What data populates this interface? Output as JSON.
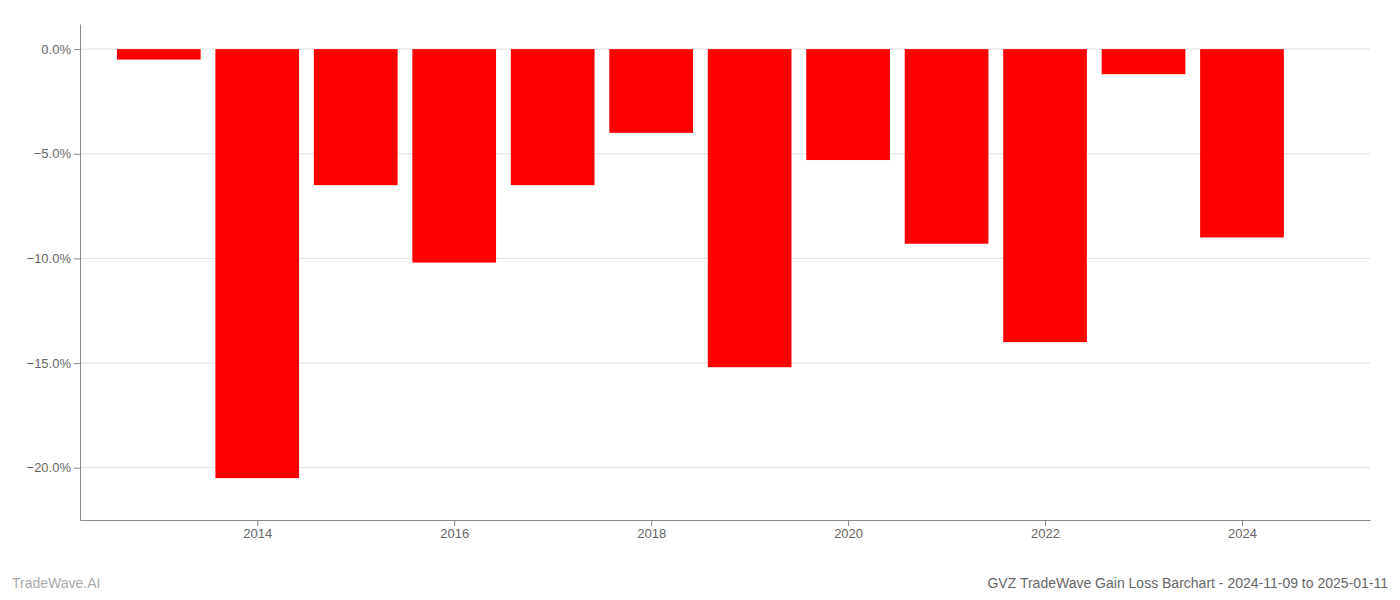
{
  "chart_data": {
    "type": "bar",
    "title": "GVZ TradeWave Gain Loss Barchart - 2024-11-09 to 2025-01-11",
    "annotations": [
      "TradeWave.AI"
    ],
    "x": [
      2013,
      2014,
      2015,
      2016,
      2017,
      2018,
      2019,
      2020,
      2021,
      2022,
      2023,
      2024
    ],
    "values": [
      -0.5,
      -20.5,
      -6.5,
      -10.2,
      -6.5,
      -4.0,
      -15.2,
      -5.3,
      -9.3,
      -14.0,
      -1.2,
      -9.0
    ],
    "color": "#ff0000",
    "xlim": [
      2012.2,
      2025.3
    ],
    "xticks": [
      2014,
      2016,
      2018,
      2020,
      2022,
      2024
    ],
    "ylim": [
      -22.5,
      1.2
    ],
    "yticks": [
      {
        "value": 0.0,
        "label": "0.0%"
      },
      {
        "value": -5.0,
        "label": "−5.0%"
      },
      {
        "value": -10.0,
        "label": "−10.0%"
      },
      {
        "value": -15.0,
        "label": "−15.0%"
      },
      {
        "value": -20.0,
        "label": "−20.0%"
      }
    ],
    "grid": true
  }
}
